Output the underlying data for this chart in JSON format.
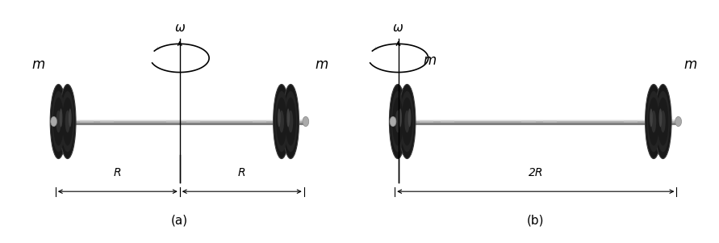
{
  "fig_width": 8.91,
  "fig_height": 3.01,
  "bg_color": "#ffffff",
  "panel_a_label": "(a)",
  "panel_b_label": "(b)",
  "omega_label": "ω",
  "mass_label": "m",
  "dim_r_label": "R",
  "dim_2r_label": "2R",
  "disk_colors": [
    "#111111",
    "#1e1e1e",
    "#2a2a2a",
    "#363636"
  ],
  "disk_edge": "#444444",
  "disk_highlight": "#606060",
  "bar_color": "#b8b8b8",
  "bar_highlight": "#e8e8e8",
  "bar_shadow": "#888888",
  "cap_color": "#aaaaaa",
  "text_color": "#000000",
  "axis_color": "#000000"
}
